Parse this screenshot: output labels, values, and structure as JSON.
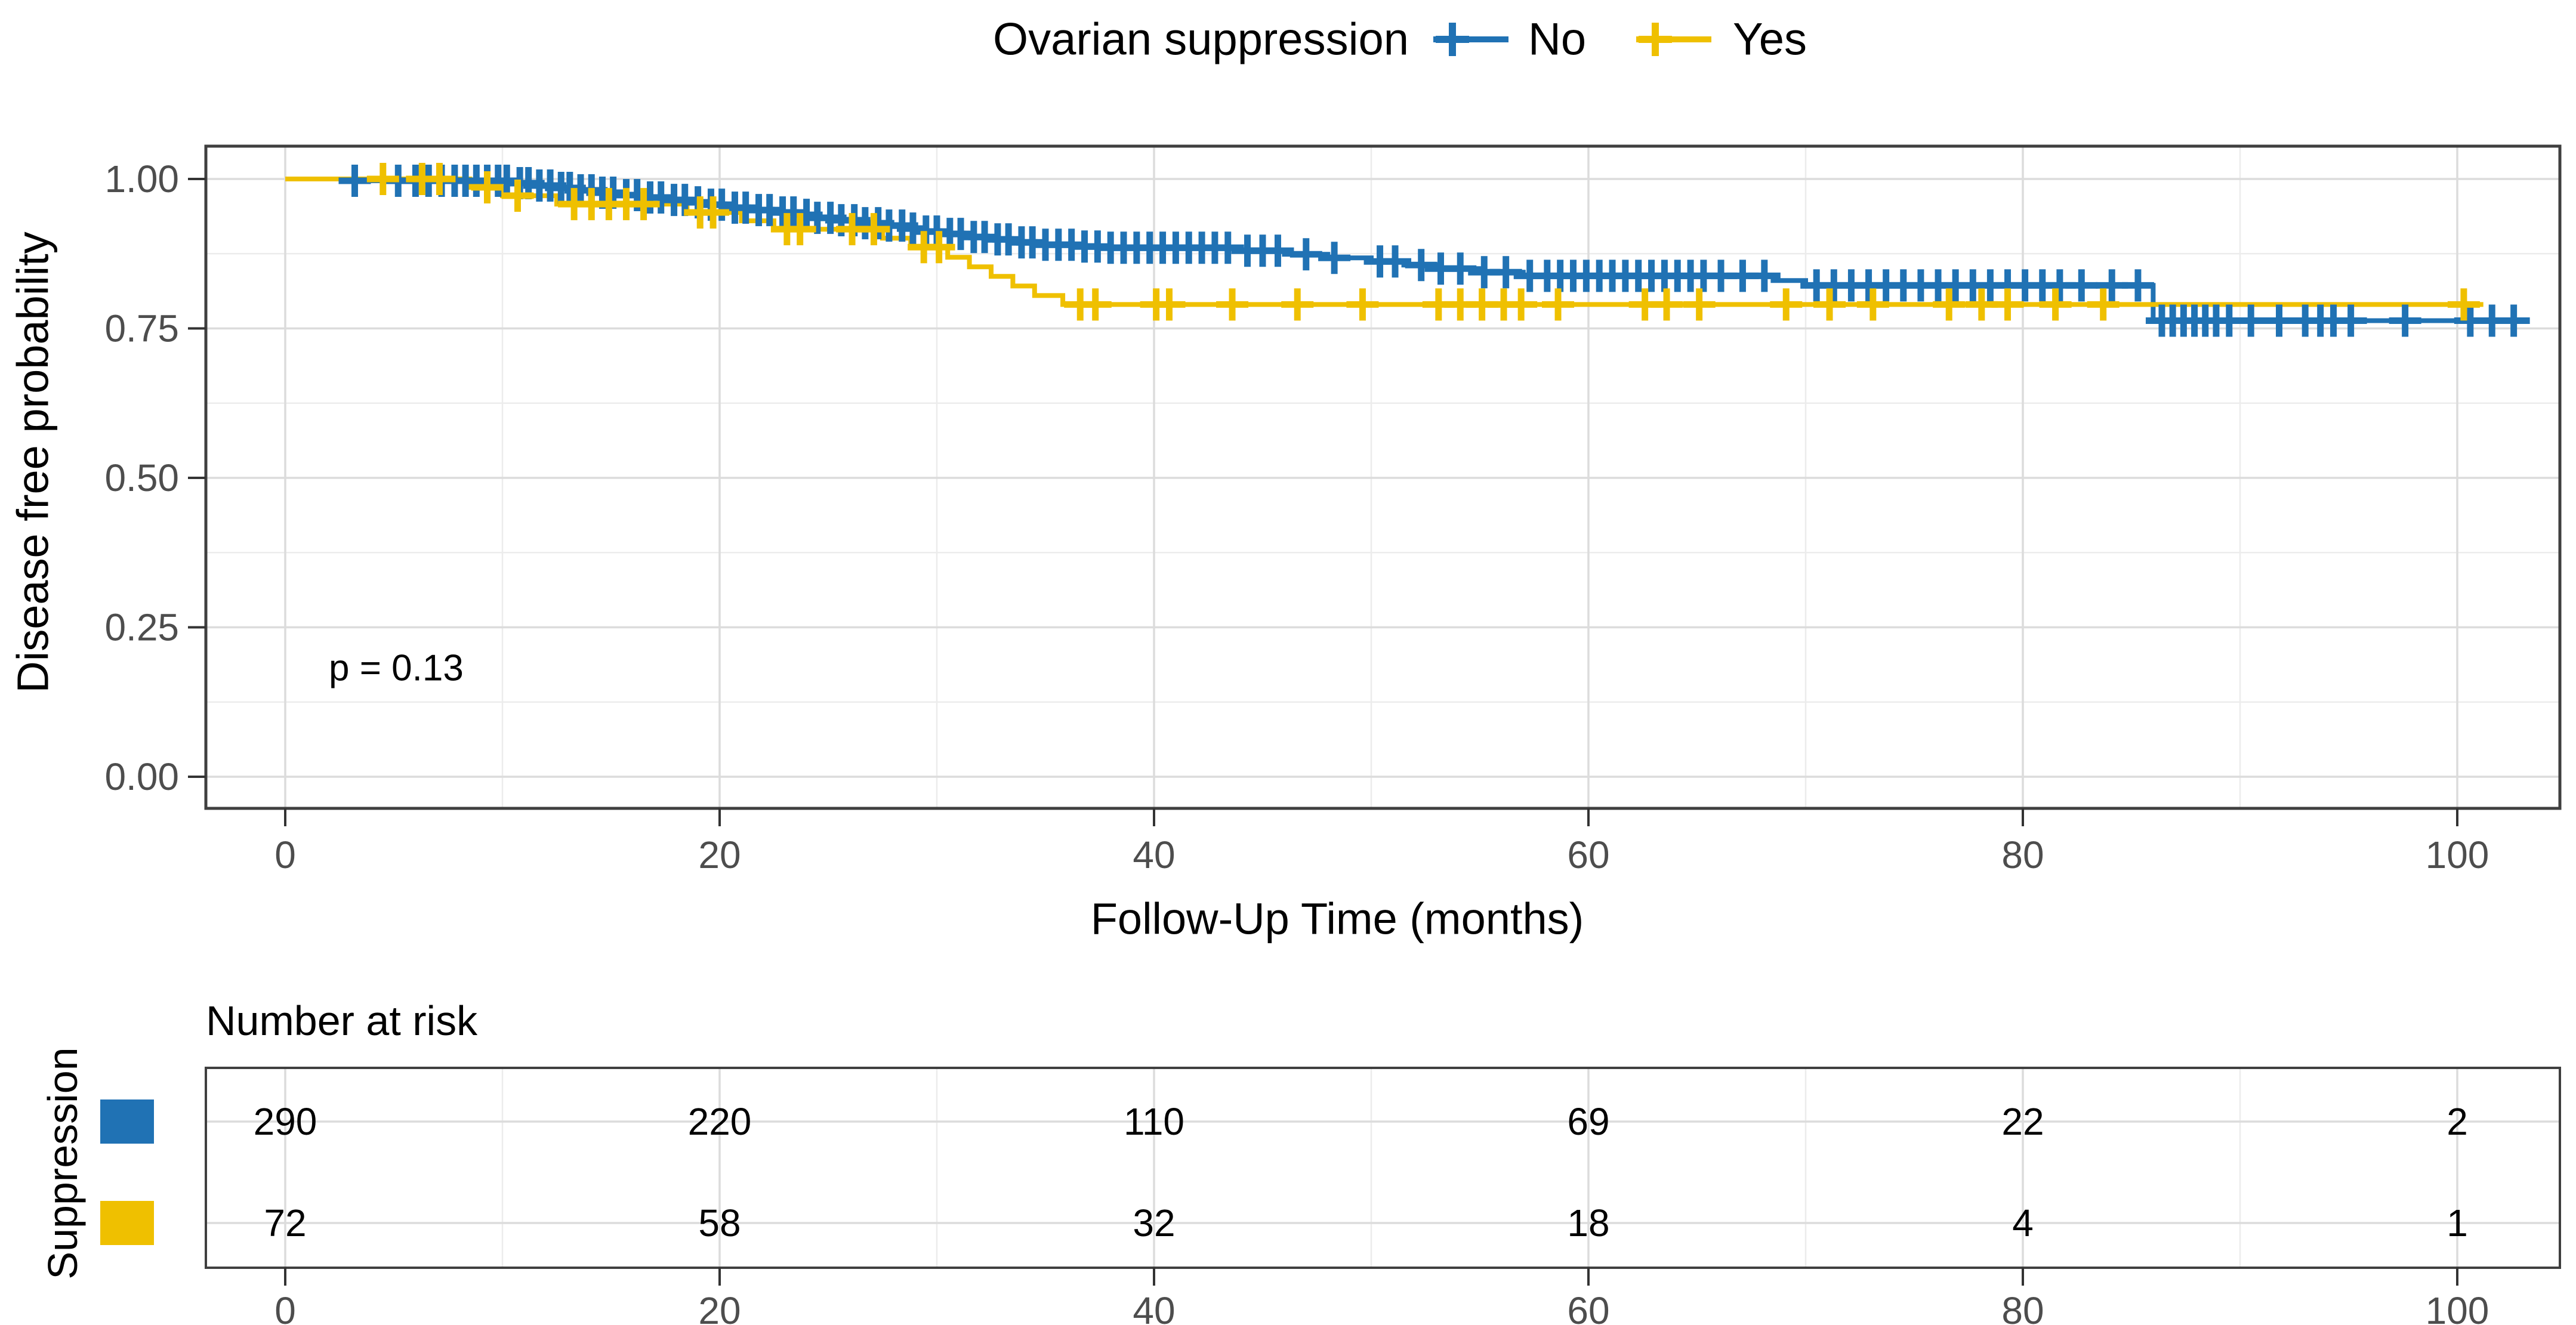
{
  "legend": {
    "title": "Ovarian suppression"
  },
  "main": {
    "p_value_label": "p = 0.13",
    "xlabel": "Follow-Up Time (months)",
    "ylabel": "Disease free probability"
  },
  "chart_data": {
    "type": "line",
    "subtype": "kaplan-meier-step",
    "title": "Ovarian suppression",
    "xlabel": "Follow-Up Time (months)",
    "ylabel": "Disease free probability",
    "xlim": [
      0,
      100
    ],
    "ylim": [
      0.0,
      1.0
    ],
    "grid": "on",
    "legend_position": "top",
    "p_value": "p = 0.13",
    "p_value_xy": [
      2,
      0.182
    ],
    "x_ticks": [
      0,
      20,
      40,
      60,
      80,
      100
    ],
    "x_minor_ticks": [
      10,
      30,
      50,
      70,
      90
    ],
    "y_ticks": [
      1.0,
      0.75,
      0.5,
      0.25,
      0.0
    ],
    "y_tick_labels": [
      "1.00",
      "0.75",
      "0.50",
      "0.25",
      "0.00"
    ],
    "y_minor_ticks": [
      0.875,
      0.625,
      0.375,
      0.125
    ],
    "colors": {
      "no": "#2072B4",
      "yes": "#EFC000",
      "grid_major": "#DCDCDC",
      "grid_minor": "#ECECEC",
      "panel_border": "#3F3F3F",
      "tick": "#333333",
      "tick_label": "#4D4D4D"
    },
    "series": [
      {
        "name": "No",
        "color": "#2072B4",
        "end_time": 103.3,
        "points": [
          [
            0,
            1.0
          ],
          [
            3.2,
            0.997
          ],
          [
            10.5,
            0.993
          ],
          [
            11.5,
            0.989
          ],
          [
            12.5,
            0.985
          ],
          [
            13.5,
            0.981
          ],
          [
            14.5,
            0.977
          ],
          [
            15.5,
            0.973
          ],
          [
            16.5,
            0.969
          ],
          [
            17.5,
            0.965
          ],
          [
            18.5,
            0.961
          ],
          [
            19.5,
            0.957
          ],
          [
            20.5,
            0.952
          ],
          [
            21.5,
            0.948
          ],
          [
            22.5,
            0.944
          ],
          [
            23.5,
            0.94
          ],
          [
            24.5,
            0.935
          ],
          [
            25.5,
            0.931
          ],
          [
            26.5,
            0.926
          ],
          [
            27.5,
            0.922
          ],
          [
            28.5,
            0.917
          ],
          [
            29.5,
            0.912
          ],
          [
            30.5,
            0.908
          ],
          [
            31.5,
            0.903
          ],
          [
            32.5,
            0.899
          ],
          [
            33.5,
            0.894
          ],
          [
            35,
            0.89
          ],
          [
            36.5,
            0.887
          ],
          [
            38,
            0.885
          ],
          [
            44,
            0.88
          ],
          [
            46,
            0.874
          ],
          [
            48,
            0.868
          ],
          [
            50,
            0.862
          ],
          [
            51.5,
            0.856
          ],
          [
            53,
            0.85
          ],
          [
            55,
            0.844
          ],
          [
            57,
            0.838
          ],
          [
            68.5,
            0.83
          ],
          [
            70,
            0.822
          ],
          [
            86,
            0.763
          ]
        ],
        "censor_times": [
          3.2,
          5.2,
          6.0,
          6.6,
          7.2,
          7.8,
          8.3,
          8.8,
          9.3,
          9.8,
          10.2,
          10.8,
          11.2,
          11.7,
          12.2,
          12.7,
          13.1,
          13.6,
          14.1,
          14.6,
          15.1,
          15.7,
          16.2,
          16.8,
          17.3,
          17.9,
          18.4,
          19.0,
          19.6,
          20.1,
          20.7,
          21.2,
          21.8,
          22.3,
          22.9,
          23.4,
          24.0,
          24.5,
          25.1,
          25.6,
          26.2,
          26.7,
          27.3,
          27.8,
          28.4,
          28.9,
          29.5,
          30.0,
          30.6,
          31.1,
          31.7,
          32.2,
          32.8,
          33.3,
          33.9,
          34.4,
          35.0,
          35.6,
          36.2,
          36.8,
          37.4,
          38.0,
          38.6,
          39.2,
          39.8,
          40.4,
          41.0,
          41.6,
          42.2,
          42.8,
          43.4,
          44.3,
          45.0,
          45.7,
          47.0,
          48.3,
          50.4,
          51.1,
          52.3,
          53.2,
          54.1,
          55.2,
          56.2,
          57.3,
          58.1,
          58.7,
          59.3,
          59.9,
          60.5,
          61.1,
          61.7,
          62.3,
          62.9,
          63.5,
          64.1,
          64.7,
          65.3,
          66.1,
          67.1,
          68.1,
          70.5,
          71.3,
          72.1,
          72.9,
          73.7,
          74.5,
          75.3,
          76.1,
          76.9,
          77.7,
          78.5,
          79.3,
          80.1,
          80.9,
          81.7,
          82.7,
          84.1,
          85.3,
          86.4,
          86.9,
          87.4,
          87.9,
          88.4,
          88.9,
          89.5,
          90.5,
          91.8,
          93.0,
          93.7,
          94.3,
          95.1,
          97.6,
          100.6,
          101.6,
          102.6
        ]
      },
      {
        "name": "Yes",
        "color": "#EFC000",
        "end_time": 101.2,
        "points": [
          [
            0,
            1.0
          ],
          [
            8.5,
            0.986
          ],
          [
            10,
            0.972
          ],
          [
            12.5,
            0.958
          ],
          [
            18.5,
            0.944
          ],
          [
            21,
            0.93
          ],
          [
            22.5,
            0.916
          ],
          [
            27.5,
            0.901
          ],
          [
            28.8,
            0.886
          ],
          [
            30.5,
            0.869
          ],
          [
            31.5,
            0.853
          ],
          [
            32.5,
            0.837
          ],
          [
            33.5,
            0.821
          ],
          [
            34.5,
            0.805
          ],
          [
            35.8,
            0.79
          ]
        ],
        "censor_times": [
          4.5,
          6.3,
          7.1,
          9.3,
          10.7,
          13.3,
          14.1,
          14.9,
          15.7,
          16.5,
          19.1,
          19.7,
          23.1,
          23.7,
          26.1,
          27.1,
          29.4,
          30.1,
          36.6,
          37.3,
          40.1,
          40.7,
          43.6,
          46.6,
          49.6,
          53.1,
          54.1,
          55.1,
          56.1,
          56.9,
          58.6,
          62.6,
          63.6,
          65.1,
          69.1,
          71.1,
          73.1,
          76.6,
          78.1,
          79.3,
          81.5,
          83.7,
          100.3
        ]
      }
    ],
    "risk_table": {
      "title": "Number at risk",
      "ylabel": "Suppression",
      "times": [
        0,
        20,
        40,
        60,
        80,
        100
      ],
      "rows": [
        {
          "name": "No",
          "color": "#2072B4",
          "counts": [
            290,
            220,
            110,
            69,
            22,
            2
          ]
        },
        {
          "name": "Yes",
          "color": "#EFC000",
          "counts": [
            72,
            58,
            32,
            18,
            4,
            1
          ]
        }
      ]
    }
  },
  "risk_table": {
    "title": "Number at risk",
    "ylabel": "Suppression"
  }
}
